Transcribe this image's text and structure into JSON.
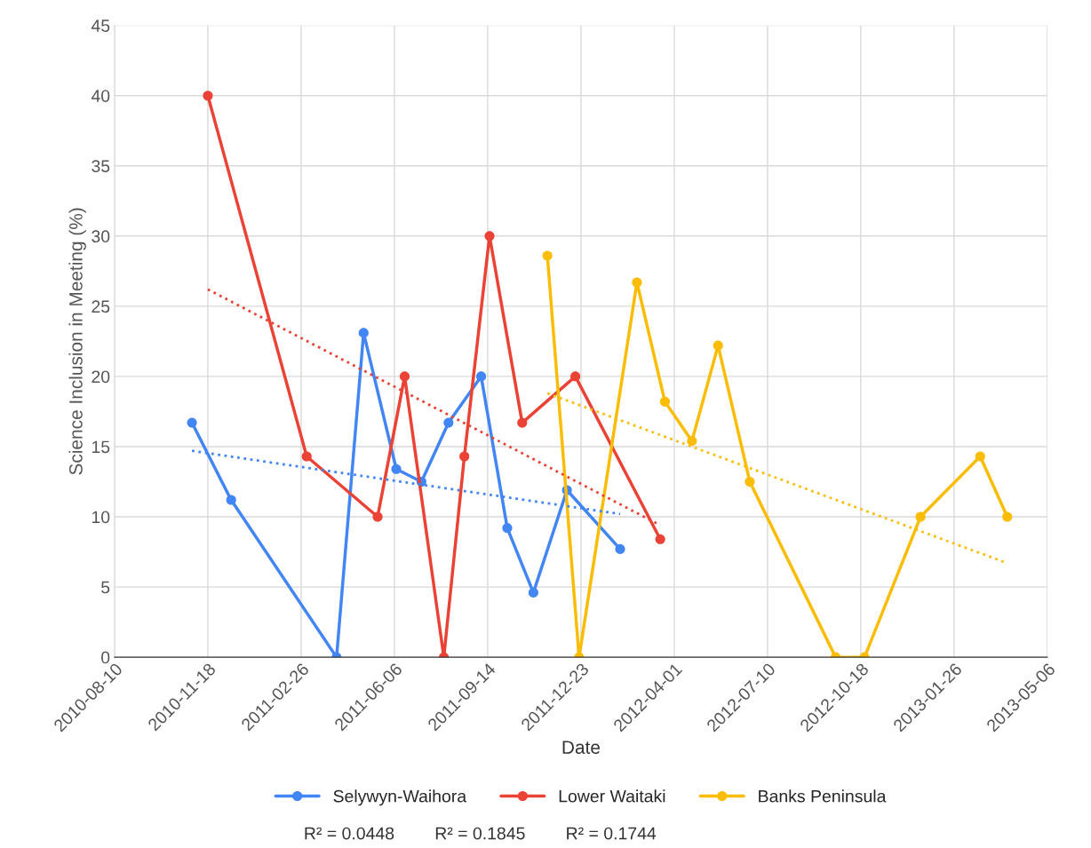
{
  "chart_data": {
    "type": "line",
    "xlabel": "Date",
    "ylabel": "Science Inclusion in Meeting (%)",
    "xlim": [
      "2010-08-10",
      "2013-05-06"
    ],
    "xticks": [
      "2010-08-10",
      "2010-11-18",
      "2011-02-26",
      "2011-06-06",
      "2011-09-14",
      "2011-12-23",
      "2012-04-01",
      "2012-07-10",
      "2012-10-18",
      "2013-01-26",
      "2013-05-06"
    ],
    "ylim": [
      0,
      45
    ],
    "yticks": [
      0,
      5,
      10,
      15,
      20,
      25,
      30,
      35,
      40,
      45
    ],
    "grid": true,
    "legend": "bottom",
    "marker": "circle",
    "series": [
      {
        "name": "Selywyn-Waihora",
        "color": "#4285f4",
        "x": [
          "2010-11-01",
          "2010-12-13",
          "2011-04-05",
          "2011-05-04",
          "2011-06-08",
          "2011-07-05",
          "2011-08-03",
          "2011-09-07",
          "2011-10-05",
          "2011-11-02",
          "2011-12-08",
          "2012-02-03"
        ],
        "values": [
          16.7,
          11.2,
          0,
          23.1,
          13.4,
          12.5,
          16.7,
          20,
          9.2,
          4.6,
          11.9,
          7.7
        ]
      },
      {
        "name": "Lower Waitaki",
        "color": "#ea4335",
        "x": [
          "2010-11-18",
          "2011-03-04",
          "2011-05-19",
          "2011-06-17",
          "2011-07-29",
          "2011-08-20",
          "2011-09-16",
          "2011-10-21",
          "2011-12-17",
          "2012-03-17"
        ],
        "values": [
          40,
          14.3,
          10,
          20,
          0,
          14.3,
          30,
          16.7,
          20,
          8.4
        ]
      },
      {
        "name": "Banks Peninsula",
        "color": "#fbbc04",
        "x": [
          "2011-11-17",
          "2011-12-21",
          "2012-02-21",
          "2012-03-22",
          "2012-04-20",
          "2012-05-18",
          "2012-06-21",
          "2012-09-21",
          "2012-10-22",
          "2012-12-21",
          "2013-02-23",
          "2013-03-24"
        ],
        "values": [
          28.6,
          0,
          26.7,
          18.2,
          15.4,
          22.2,
          12.5,
          0,
          0,
          10,
          14.3,
          10
        ]
      },
      {
        "type": "line",
        "color": "#4285f4",
        "line_style": "dotted",
        "marker": "none",
        "x": [
          "2010-11-01",
          "2012-02-03"
        ],
        "values": [
          14.7,
          10.2
        ]
      },
      {
        "type": "line",
        "color": "#ea4335",
        "line_style": "dotted",
        "marker": "none",
        "x": [
          "2010-11-18",
          "2012-03-17"
        ],
        "values": [
          26.2,
          9.4
        ]
      },
      {
        "type": "line",
        "color": "#fbbc04",
        "line_style": "dotted",
        "marker": "none",
        "x": [
          "2011-11-17",
          "2013-03-24"
        ],
        "values": [
          18.8,
          6.7
        ]
      }
    ],
    "annotations": [
      "R² = 0.0448",
      "R² = 0.1845",
      "R² = 0.1744"
    ]
  }
}
